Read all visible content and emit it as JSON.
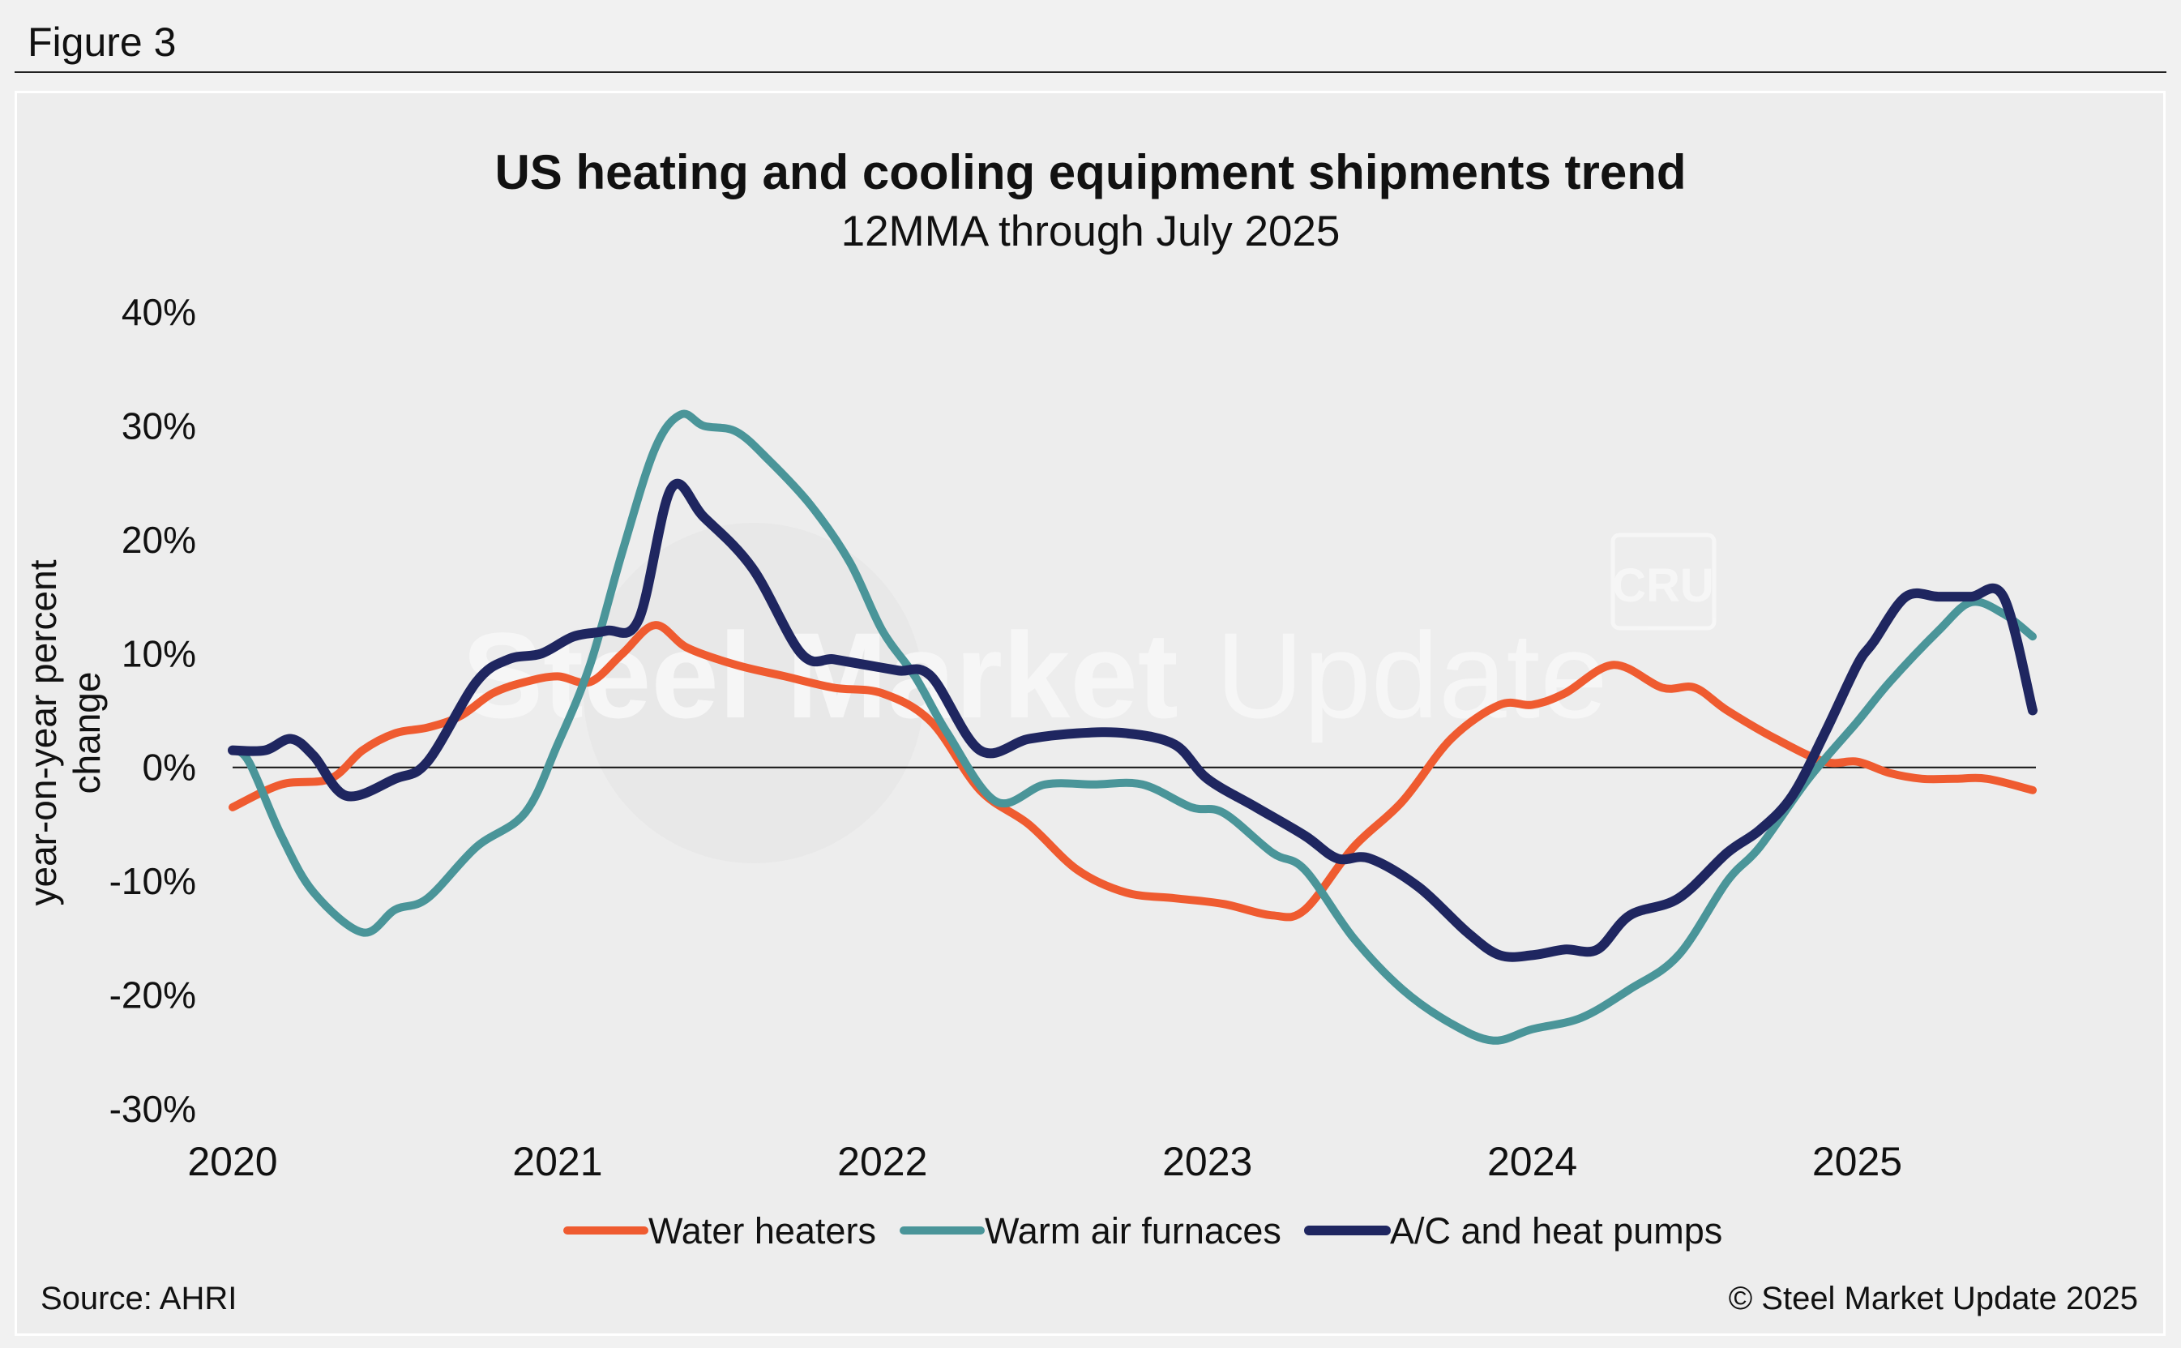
{
  "figure_label": "Figure 3",
  "source": "Source: AHRI",
  "copyright": "© Steel Market Update 2025",
  "watermark": {
    "text_bold": "Steel Market",
    "text_light": "Update",
    "logo": "CRU"
  },
  "colors": {
    "water_heaters": "#ef5b30",
    "warm_air_furnaces": "#4a9599",
    "ac_heat_pumps": "#1f2660",
    "zero_line": "#111111"
  },
  "chart_data": {
    "type": "line",
    "title": "US heating and cooling equipment shipments trend",
    "subtitle": "12MMA through July 2025",
    "xlabel": "",
    "ylabel": "year-on-year percent change",
    "xlim": [
      2020.0,
      2025.55
    ],
    "ylim": [
      -30,
      40
    ],
    "y_ticks": [
      40,
      30,
      20,
      10,
      0,
      -10,
      -20,
      -30
    ],
    "y_tick_labels": [
      "40%",
      "30%",
      "20%",
      "10%",
      "0%",
      "-10%",
      "-20%",
      "-30%"
    ],
    "x_ticks": [
      2020,
      2021,
      2022,
      2023,
      2024,
      2025
    ],
    "x_tick_labels": [
      "2020",
      "2021",
      "2022",
      "2023",
      "2024",
      "2025"
    ],
    "legend_position": "bottom",
    "series": [
      {
        "name": "Water heaters",
        "color_key": "water_heaters",
        "x": [
          2020.0,
          2020.15,
          2020.3,
          2020.4,
          2020.5,
          2020.6,
          2020.7,
          2020.8,
          2020.9,
          2021.0,
          2021.1,
          2021.2,
          2021.3,
          2021.4,
          2021.55,
          2021.7,
          2021.85,
          2022.0,
          2022.15,
          2022.3,
          2022.45,
          2022.6,
          2022.75,
          2022.9,
          2023.05,
          2023.2,
          2023.3,
          2023.45,
          2023.6,
          2023.75,
          2023.9,
          2024.0,
          2024.1,
          2024.25,
          2024.4,
          2024.5,
          2024.6,
          2024.75,
          2024.9,
          2025.0,
          2025.1,
          2025.2,
          2025.3,
          2025.4,
          2025.54
        ],
        "y": [
          -3.5,
          -1.5,
          -1.0,
          1.5,
          3.0,
          3.5,
          4.5,
          6.5,
          7.5,
          8.0,
          7.5,
          10.0,
          12.5,
          10.5,
          9.0,
          8.0,
          7.0,
          6.5,
          4.0,
          -2.0,
          -5.0,
          -9.0,
          -11.0,
          -11.5,
          -12.0,
          -13.0,
          -12.5,
          -7.0,
          -3.0,
          2.5,
          5.5,
          5.5,
          6.5,
          9.0,
          7.0,
          7.0,
          5.0,
          2.5,
          0.5,
          0.5,
          -0.5,
          -1.0,
          -1.0,
          -1.0,
          -2.0
        ]
      },
      {
        "name": "Warm air furnaces",
        "color_key": "warm_air_furnaces",
        "x": [
          2020.0,
          2020.05,
          2020.15,
          2020.25,
          2020.4,
          2020.5,
          2020.6,
          2020.75,
          2020.9,
          2021.0,
          2021.1,
          2021.2,
          2021.3,
          2021.38,
          2021.45,
          2021.55,
          2021.65,
          2021.78,
          2021.9,
          2022.0,
          2022.1,
          2022.2,
          2022.35,
          2022.5,
          2022.65,
          2022.8,
          2022.95,
          2023.05,
          2023.2,
          2023.3,
          2023.45,
          2023.6,
          2023.75,
          2023.88,
          2024.0,
          2024.15,
          2024.3,
          2024.45,
          2024.6,
          2024.7,
          2024.85,
          2025.0,
          2025.1,
          2025.25,
          2025.35,
          2025.45,
          2025.54
        ],
        "y": [
          1.5,
          0.5,
          -6.0,
          -11.0,
          -14.5,
          -12.5,
          -11.5,
          -7.0,
          -4.0,
          2.0,
          9.0,
          19.0,
          28.0,
          31.0,
          30.0,
          29.5,
          27.0,
          23.0,
          18.0,
          12.0,
          8.0,
          3.0,
          -3.0,
          -1.5,
          -1.5,
          -1.5,
          -3.5,
          -4.0,
          -7.5,
          -9.0,
          -15.0,
          -19.5,
          -22.5,
          -24.0,
          -23.0,
          -22.0,
          -19.5,
          -16.5,
          -10.0,
          -7.0,
          -1.0,
          4.0,
          7.5,
          12.0,
          14.5,
          13.5,
          11.5
        ]
      },
      {
        "name": "A/C and heat pumps",
        "color_key": "ac_heat_pumps",
        "x": [
          2020.0,
          2020.1,
          2020.18,
          2020.25,
          2020.35,
          2020.5,
          2020.6,
          2020.75,
          2020.85,
          2020.95,
          2021.05,
          2021.15,
          2021.25,
          2021.35,
          2021.45,
          2021.6,
          2021.75,
          2021.85,
          2021.95,
          2022.05,
          2022.15,
          2022.3,
          2022.45,
          2022.6,
          2022.75,
          2022.9,
          2023.0,
          2023.15,
          2023.3,
          2023.4,
          2023.5,
          2023.65,
          2023.8,
          2023.9,
          2024.0,
          2024.1,
          2024.2,
          2024.3,
          2024.45,
          2024.6,
          2024.7,
          2024.8,
          2024.9,
          2025.0,
          2025.05,
          2025.15,
          2025.25,
          2025.35,
          2025.45,
          2025.54
        ],
        "y": [
          1.5,
          1.5,
          2.5,
          1.0,
          -2.5,
          -1.0,
          0.5,
          7.5,
          9.5,
          10.0,
          11.5,
          12.0,
          13.0,
          24.5,
          22.0,
          17.5,
          10.0,
          9.5,
          9.0,
          8.5,
          8.0,
          1.5,
          2.5,
          3.0,
          3.0,
          2.0,
          -1.0,
          -3.5,
          -6.0,
          -8.0,
          -8.0,
          -10.5,
          -14.5,
          -16.5,
          -16.5,
          -16.0,
          -16.0,
          -13.0,
          -11.5,
          -7.5,
          -5.5,
          -2.5,
          3.0,
          9.0,
          11.0,
          15.0,
          15.0,
          15.0,
          15.0,
          5.0
        ]
      }
    ]
  }
}
